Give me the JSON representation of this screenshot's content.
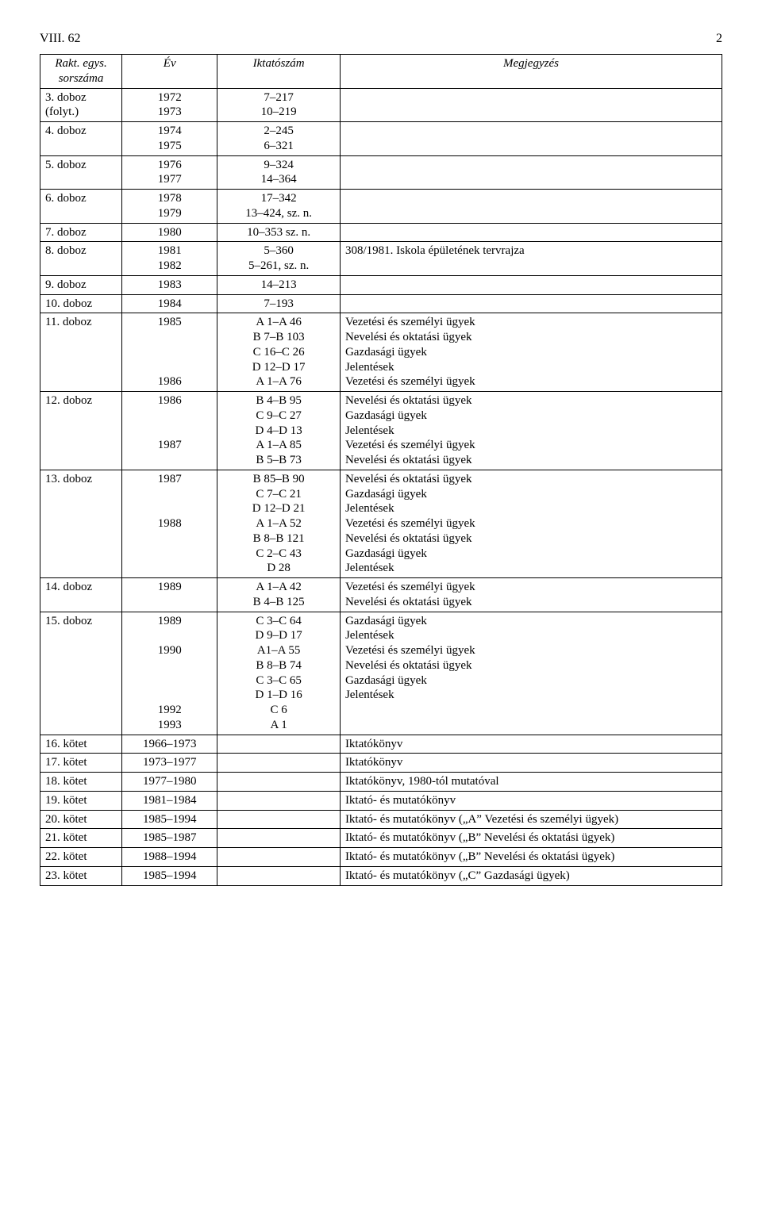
{
  "page": {
    "top_left": "VIII. 62",
    "top_right": "2"
  },
  "table": {
    "headers": [
      "Rakt. egys. sorszáma",
      "Év",
      "Iktatószám",
      "Megjegyzés"
    ],
    "rows": [
      {
        "c1": [
          "3. doboz",
          "(folyt.)"
        ],
        "c2": [
          "1972",
          "1973"
        ],
        "c3": [
          "7–217",
          "10–219"
        ],
        "c4": []
      },
      {
        "c1": [
          "4. doboz"
        ],
        "c2": [
          "1974",
          "1975"
        ],
        "c3": [
          "2–245",
          "6–321"
        ],
        "c4": []
      },
      {
        "c1": [
          "5. doboz"
        ],
        "c2": [
          "1976",
          "1977"
        ],
        "c3": [
          "9–324",
          "14–364"
        ],
        "c4": []
      },
      {
        "c1": [
          "6. doboz"
        ],
        "c2": [
          "1978",
          "1979"
        ],
        "c3": [
          "17–342",
          "13–424, sz. n."
        ],
        "c4": []
      },
      {
        "c1": [
          "7. doboz"
        ],
        "c2": [
          "1980"
        ],
        "c3": [
          "10–353 sz. n."
        ],
        "c4": []
      },
      {
        "c1": [
          "8. doboz"
        ],
        "c2": [
          "1981",
          "1982"
        ],
        "c3": [
          "5–360",
          "5–261, sz. n."
        ],
        "c4": [
          "308/1981. Iskola épületének tervrajza"
        ]
      },
      {
        "c1": [
          "9. doboz"
        ],
        "c2": [
          "1983"
        ],
        "c3": [
          "14–213"
        ],
        "c4": []
      },
      {
        "c1": [
          "10. doboz"
        ],
        "c2": [
          "1984"
        ],
        "c3": [
          "7–193"
        ],
        "c4": []
      },
      {
        "c1": [
          "11. doboz"
        ],
        "c2": [
          "1985",
          "",
          "",
          "",
          "1986"
        ],
        "c3": [
          "A 1–A 46",
          "B 7–B 103",
          "C 16–C 26",
          "D 12–D 17",
          "A 1–A 76"
        ],
        "c4": [
          "Vezetési és személyi ügyek",
          "Nevelési és oktatási ügyek",
          "Gazdasági ügyek",
          "Jelentések",
          "Vezetési és személyi ügyek"
        ]
      },
      {
        "c1": [
          "12. doboz"
        ],
        "c2": [
          "1986",
          "",
          "",
          "1987",
          ""
        ],
        "c3": [
          "B 4–B 95",
          "C 9–C 27",
          "D 4–D 13",
          "A 1–A 85",
          "B 5–B 73"
        ],
        "c4": [
          "Nevelési és oktatási ügyek",
          "Gazdasági ügyek",
          "Jelentések",
          "Vezetési és személyi ügyek",
          "Nevelési és oktatási ügyek"
        ]
      },
      {
        "c1": [
          "13. doboz"
        ],
        "c2": [
          "1987",
          "",
          "",
          "1988",
          "",
          "",
          ""
        ],
        "c3": [
          "B 85–B 90",
          "C 7–C 21",
          "D 12–D 21",
          "A 1–A 52",
          "B 8–B 121",
          "C 2–C 43",
          "D 28"
        ],
        "c4": [
          "Nevelési és oktatási ügyek",
          "Gazdasági ügyek",
          "Jelentések",
          "Vezetési és személyi ügyek",
          "Nevelési és oktatási ügyek",
          "Gazdasági ügyek",
          "Jelentések"
        ]
      },
      {
        "c1": [
          "14. doboz"
        ],
        "c2": [
          "1989",
          ""
        ],
        "c3": [
          "A 1–A 42",
          "B 4–B 125"
        ],
        "c4": [
          "Vezetési és személyi ügyek",
          "Nevelési és oktatási ügyek"
        ]
      },
      {
        "c1": [
          "15. doboz"
        ],
        "c2": [
          "1989",
          "",
          "1990",
          "",
          "",
          "",
          "1992",
          "1993"
        ],
        "c3": [
          "C 3–C 64",
          "D 9–D 17",
          "A1–A 55",
          "B 8–B 74",
          "C 3–C 65",
          "D 1–D 16",
          "C 6",
          "A 1"
        ],
        "c4": [
          "Gazdasági ügyek",
          "Jelentések",
          "Vezetési és személyi ügyek",
          "Nevelési és oktatási ügyek",
          "Gazdasági ügyek",
          "Jelentések"
        ]
      },
      {
        "c1": [
          "16. kötet"
        ],
        "c2": [
          "1966–1973"
        ],
        "c3": [],
        "c4": [
          "Iktatókönyv"
        ]
      },
      {
        "c1": [
          "17. kötet"
        ],
        "c2": [
          "1973–1977"
        ],
        "c3": [],
        "c4": [
          "Iktatókönyv"
        ]
      },
      {
        "c1": [
          "18. kötet"
        ],
        "c2": [
          "1977–1980"
        ],
        "c3": [],
        "c4": [
          "Iktatókönyv, 1980-tól mutatóval"
        ]
      },
      {
        "c1": [
          "19. kötet"
        ],
        "c2": [
          "1981–1984"
        ],
        "c3": [],
        "c4": [
          "Iktató- és mutatókönyv"
        ]
      },
      {
        "c1": [
          "20. kötet"
        ],
        "c2": [
          "1985–1994"
        ],
        "c3": [],
        "c4": [
          "Iktató- és mutatókönyv („A” Vezetési és személyi ügyek)"
        ]
      },
      {
        "c1": [
          "21. kötet"
        ],
        "c2": [
          "1985–1987"
        ],
        "c3": [],
        "c4": [
          "Iktató- és mutatókönyv („B” Nevelési és oktatási ügyek)"
        ]
      },
      {
        "c1": [
          "22. kötet"
        ],
        "c2": [
          "1988–1994"
        ],
        "c3": [],
        "c4": [
          "Iktató- és mutatókönyv („B” Nevelési és oktatási ügyek)"
        ]
      },
      {
        "c1": [
          "23. kötet"
        ],
        "c2": [
          "1985–1994"
        ],
        "c3": [],
        "c4": [
          "Iktató- és mutatókönyv („C” Gazdasági ügyek)"
        ]
      }
    ]
  }
}
